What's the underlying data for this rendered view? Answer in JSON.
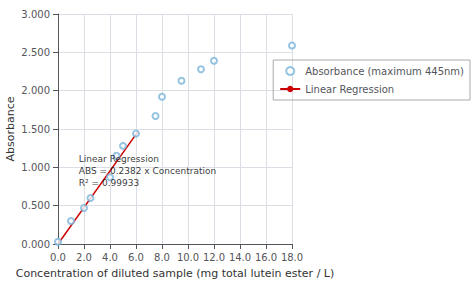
{
  "chart_data": {
    "type": "scatter",
    "xlabel": "Concentration of diluted sample (mg total lutein ester / L)",
    "ylabel": "Absorbance",
    "series": [
      {
        "name": "Absorbance (maximum 445nm)",
        "type": "scatter",
        "color": "#7ab4d8",
        "marker": "circle",
        "x": [
          0.0,
          1.0,
          2.0,
          2.5,
          4.0,
          4.5,
          5.0,
          6.0,
          7.5,
          8.0,
          9.5,
          11.0,
          12.0,
          18.0
        ],
        "values": [
          0.03,
          0.3,
          0.47,
          0.6,
          0.87,
          1.15,
          1.28,
          1.44,
          1.67,
          1.92,
          2.13,
          2.28,
          2.39,
          2.59
        ]
      },
      {
        "name": "Linear Regression",
        "type": "line",
        "color": "#cc0000",
        "line_style": "solid",
        "x": [
          0.0,
          6.15
        ],
        "values": [
          0.0,
          1.46493
        ]
      }
    ],
    "annotations": [
      {
        "text": "Linear Regression\nABS = 0.2382 x Concentration\nR² = 0.99933",
        "x": 1.6,
        "y": 0.72
      }
    ],
    "xlim": [
      0.0,
      18.0
    ],
    "ylim": [
      0.0,
      3.0
    ],
    "xticks": [
      {
        "value": 0,
        "label": "0.0"
      },
      {
        "value": 2,
        "label": "2.0"
      },
      {
        "value": 4,
        "label": "4.0"
      },
      {
        "value": 6,
        "label": "6.0"
      },
      {
        "value": 8,
        "label": "8.0"
      },
      {
        "value": 10,
        "label": "10.0"
      },
      {
        "value": 12,
        "label": "12.0"
      },
      {
        "value": 14,
        "label": "14.0"
      },
      {
        "value": 16,
        "label": "16.0"
      },
      {
        "value": 18,
        "label": "18.0"
      }
    ],
    "yticks": [
      {
        "value": 0,
        "label": "0.000"
      },
      {
        "value": 0.5,
        "label": "0.500"
      },
      {
        "value": 1,
        "label": "1.000"
      },
      {
        "value": 1.5,
        "label": "1.500"
      },
      {
        "value": 2,
        "label": "2.000"
      },
      {
        "value": 2.5,
        "label": "2.500"
      },
      {
        "value": 3,
        "label": "3.000"
      }
    ],
    "grid": true,
    "legend": "right"
  }
}
